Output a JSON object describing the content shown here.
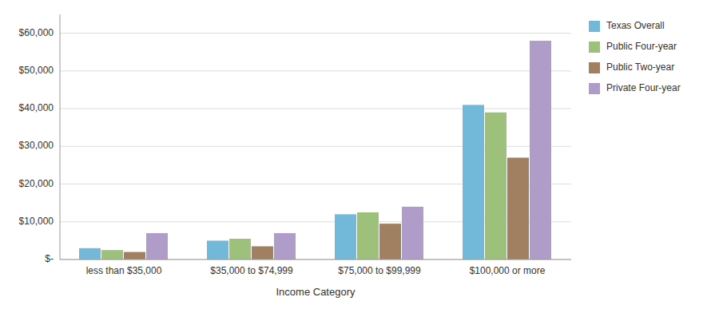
{
  "chart_data": {
    "type": "bar",
    "xlabel": "Income Category",
    "categories": [
      "less than $35,000",
      "$35,000 to $74,999",
      "$75,000 to $99,999",
      "$100,000 or more"
    ],
    "series": [
      {
        "name": "Texas Overall",
        "color": "#72b8d8",
        "values": [
          3000,
          5000,
          12000,
          41000
        ]
      },
      {
        "name": "Public Four-year",
        "color": "#9dc07a",
        "values": [
          2500,
          5500,
          12500,
          39000
        ]
      },
      {
        "name": "Public Two-year",
        "color": "#a08060",
        "values": [
          2000,
          3500,
          9500,
          27000
        ]
      },
      {
        "name": "Private Four-year",
        "color": "#b09cc8",
        "values": [
          7000,
          7000,
          14000,
          58000
        ]
      }
    ],
    "ylim": [
      0,
      65000
    ],
    "yticks": [
      {
        "value": 0,
        "label": "$-"
      },
      {
        "value": 10000,
        "label": "$10,000"
      },
      {
        "value": 20000,
        "label": "$20,000"
      },
      {
        "value": 30000,
        "label": "$30,000"
      },
      {
        "value": 40000,
        "label": "$40,000"
      },
      {
        "value": 50000,
        "label": "$50,000"
      },
      {
        "value": 60000,
        "label": "$60,000"
      }
    ],
    "grid": true,
    "legend": "right"
  }
}
